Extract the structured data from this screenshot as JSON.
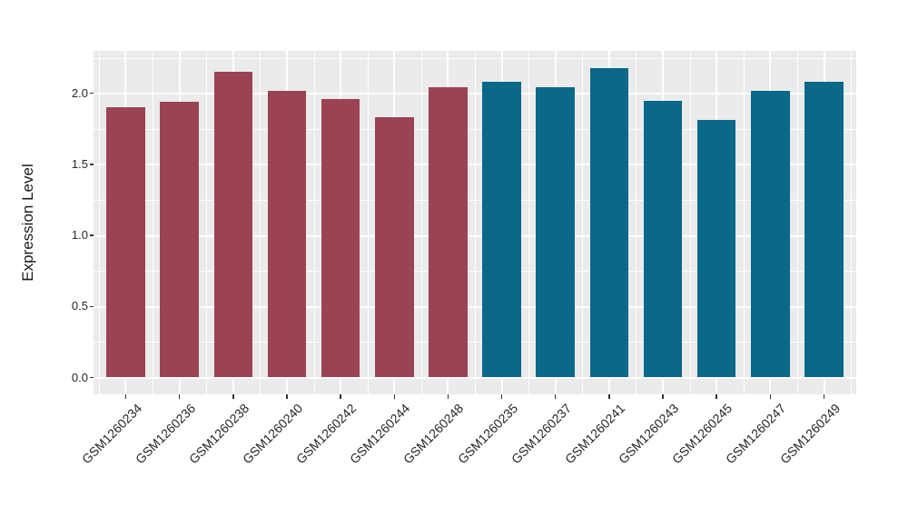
{
  "figure": {
    "background_color": "#ffffff",
    "panel_background_color": "#ebebeb",
    "gridline_color": "#ffffff",
    "axis_tick_color": "#333333",
    "axis_text_color": "#262626"
  },
  "chart_data": {
    "type": "bar",
    "title": "",
    "xlabel": "",
    "ylabel": "Expression Level",
    "categories": [
      "GSM1260234",
      "GSM1260236",
      "GSM1260238",
      "GSM1260240",
      "GSM1260242",
      "GSM1260244",
      "GSM1260248",
      "GSM1260235",
      "GSM1260237",
      "GSM1260241",
      "GSM1260243",
      "GSM1260245",
      "GSM1260247",
      "GSM1260249"
    ],
    "values": [
      1.9,
      1.94,
      2.15,
      2.02,
      1.96,
      1.83,
      2.04,
      2.08,
      2.04,
      2.18,
      1.95,
      1.81,
      2.02,
      2.08
    ],
    "bar_colors": [
      "#9b4353",
      "#9b4353",
      "#9b4353",
      "#9b4353",
      "#9b4353",
      "#9b4353",
      "#9b4353",
      "#0a6889",
      "#0a6889",
      "#0a6889",
      "#0a6889",
      "#0a6889",
      "#0a6889",
      "#0a6889"
    ],
    "ylim": [
      0,
      2.3
    ],
    "yticks": [
      0,
      0.5,
      1,
      1.5,
      2
    ],
    "ytick_labels": [
      "0.0",
      "0.5",
      "1.0",
      "1.5",
      "2.0"
    ],
    "minor_yticks": [
      0.25,
      0.75,
      1.25,
      1.75,
      2.25
    ],
    "x_tick_label_angle_deg": 45,
    "grid": true,
    "legend": false
  }
}
